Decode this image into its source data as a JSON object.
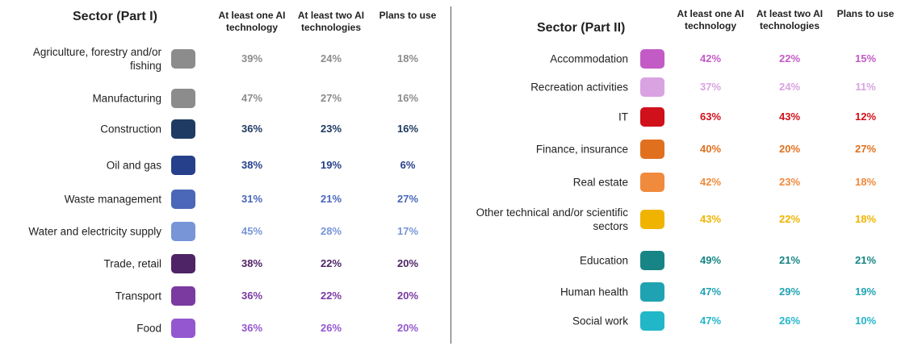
{
  "tables": [
    {
      "title": "Sector (Part I)",
      "columns": [
        "At least one AI technology",
        "At least two AI technologies",
        "Plans to use"
      ],
      "rows": [
        {
          "sector": "Agriculture, forestry and/or fishing",
          "color": "#8c8c8c",
          "cells": [
            "39%",
            "24%",
            "18%"
          ]
        },
        {
          "sector": "Manufacturing",
          "color": "#8c8c8c",
          "cells": [
            "47%",
            "27%",
            "16%"
          ]
        },
        {
          "sector": "Construction",
          "color": "#1f3b63",
          "cells": [
            "36%",
            "23%",
            "16%"
          ]
        },
        {
          "sector": "Oil and gas",
          "color": "#27408b",
          "cells": [
            "38%",
            "19%",
            "6%"
          ]
        },
        {
          "sector": "Waste management",
          "color": "#4a67b8",
          "cells": [
            "31%",
            "21%",
            "27%"
          ]
        },
        {
          "sector": "Water and electricity supply",
          "color": "#7895d8",
          "cells": [
            "45%",
            "28%",
            "17%"
          ]
        },
        {
          "sector": "Trade, retail",
          "color": "#4e2466",
          "cells": [
            "38%",
            "22%",
            "20%"
          ]
        },
        {
          "sector": "Transport",
          "color": "#7a3aa0",
          "cells": [
            "36%",
            "22%",
            "20%"
          ]
        },
        {
          "sector": "Food",
          "color": "#9457cf",
          "cells": [
            "36%",
            "26%",
            "20%"
          ]
        }
      ]
    },
    {
      "title": "Sector (Part II)",
      "columns": [
        "At least one AI technology",
        "At least two AI technologies",
        "Plans to use"
      ],
      "rows": [
        {
          "sector": "Accommodation",
          "color": "#c35bc6",
          "cells": [
            "42%",
            "22%",
            "15%"
          ]
        },
        {
          "sector": "Recreation activities",
          "color": "#d9a3e2",
          "cells": [
            "37%",
            "24%",
            "11%"
          ]
        },
        {
          "sector": "IT",
          "color": "#d0101a",
          "cells": [
            "63%",
            "43%",
            "12%"
          ]
        },
        {
          "sector": "Finance, insurance",
          "color": "#e0701e",
          "cells": [
            "40%",
            "20%",
            "27%"
          ]
        },
        {
          "sector": "Real estate",
          "color": "#f08a3c",
          "cells": [
            "42%",
            "23%",
            "18%"
          ]
        },
        {
          "sector": "Other technical and/or scientific sectors",
          "color": "#f0b400",
          "cells": [
            "43%",
            "22%",
            "18%"
          ]
        },
        {
          "sector": "Education",
          "color": "#178585",
          "cells": [
            "49%",
            "21%",
            "21%"
          ]
        },
        {
          "sector": "Human health",
          "color": "#1fa3b3",
          "cells": [
            "47%",
            "29%",
            "19%"
          ]
        },
        {
          "sector": "Social work",
          "color": "#22b6c9",
          "cells": [
            "47%",
            "26%",
            "10%"
          ]
        }
      ]
    }
  ]
}
